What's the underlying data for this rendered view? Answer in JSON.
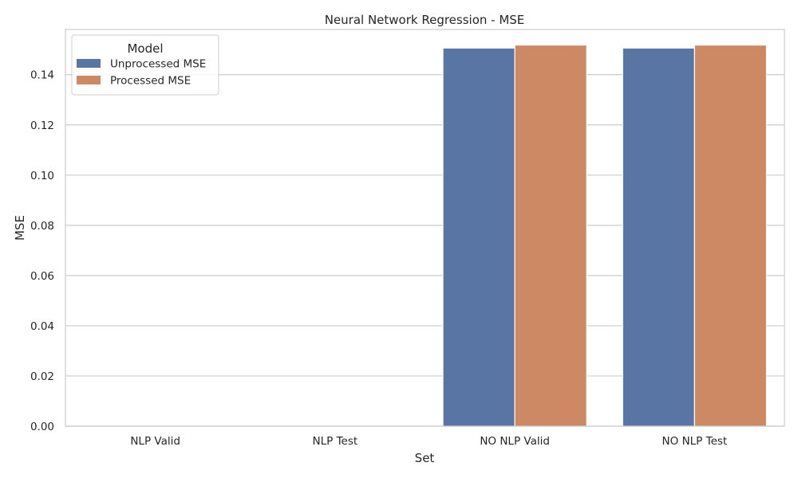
{
  "chart_data": {
    "type": "bar",
    "title": "Neural Network Regression - MSE",
    "xlabel": "Set",
    "ylabel": "MSE",
    "categories": [
      "NLP Valid",
      "NLP Test",
      "NO NLP Valid",
      "NO NLP Test"
    ],
    "series": [
      {
        "name": "Unprocessed MSE",
        "color": "#5975A4",
        "values": [
          0,
          0,
          0.1506,
          0.1506
        ]
      },
      {
        "name": "Processed MSE",
        "color": "#CC8963",
        "values": [
          0,
          0,
          0.1518,
          0.1518
        ]
      }
    ],
    "ylim": [
      0,
      0.158
    ],
    "yticks": [
      "0.00",
      "0.02",
      "0.04",
      "0.06",
      "0.08",
      "0.10",
      "0.12",
      "0.14"
    ],
    "grid": true,
    "legend": {
      "title": "Model",
      "placement": "top-left"
    }
  }
}
